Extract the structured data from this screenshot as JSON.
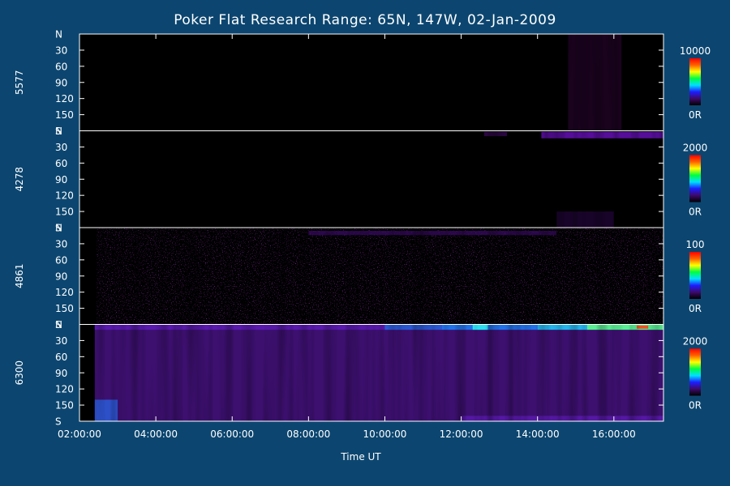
{
  "chart_data": {
    "type": "heatmap",
    "title": "Poker Flat Research Range: 65N, 147W, 02-Jan-2009",
    "xlabel": "Time UT",
    "x_ticks": [
      "02:00:00",
      "04:00:00",
      "06:00:00",
      "08:00:00",
      "10:00:00",
      "12:00:00",
      "14:00:00",
      "16:00:00"
    ],
    "x_tick_hours": [
      2,
      4,
      6,
      8,
      10,
      12,
      14,
      16
    ],
    "xlim_hours": [
      2.0,
      17.3
    ],
    "y_ticks": [
      "N",
      "30",
      "60",
      "90",
      "120",
      "150",
      "S"
    ],
    "y_tick_values": [
      0,
      30,
      60,
      90,
      120,
      150,
      180
    ],
    "ylim": [
      0,
      180
    ],
    "panels": [
      {
        "label": "5577",
        "colorbar_max": "10000",
        "colorbar_min": "0R",
        "features": [
          {
            "kind": "glow",
            "t0": 14.8,
            "t1": 16.2,
            "y0": 0,
            "y1": 180,
            "color": "#1c0320",
            "opacity": 0.9
          }
        ]
      },
      {
        "label": "4278",
        "colorbar_max": "2000",
        "colorbar_min": "0R",
        "features": [
          {
            "kind": "band",
            "t0": 12.6,
            "t1": 13.2,
            "y0": 2,
            "y1": 10,
            "color": "#3a0a5a",
            "opacity": 0.7
          },
          {
            "kind": "band",
            "t0": 14.1,
            "t1": 17.3,
            "y0": 2,
            "y1": 14,
            "color": "#5a0fa0",
            "opacity": 0.95
          },
          {
            "kind": "glow",
            "t0": 14.5,
            "t1": 16.0,
            "y0": 150,
            "y1": 180,
            "color": "#24063a",
            "opacity": 0.7
          }
        ]
      },
      {
        "label": "4861",
        "colorbar_max": "100",
        "colorbar_min": "0R",
        "features": [
          {
            "kind": "speckle",
            "t0": 2.45,
            "t1": 17.3,
            "y0": 0,
            "y1": 180,
            "color": "#4a0e78",
            "opacity": 0.75
          },
          {
            "kind": "band",
            "t0": 8.0,
            "t1": 14.5,
            "y0": 6,
            "y1": 14,
            "color": "#3a0a66",
            "opacity": 0.7
          }
        ]
      },
      {
        "label": "6300",
        "colorbar_max": "2000",
        "colorbar_min": "0R",
        "features": [
          {
            "kind": "fill",
            "t0": 2.4,
            "t1": 17.3,
            "y0": 0,
            "y1": 180,
            "color": "#3d1070",
            "opacity": 1.0
          },
          {
            "kind": "band",
            "t0": 2.4,
            "t1": 17.3,
            "y0": 0,
            "y1": 10,
            "color": "#5b1ab0",
            "opacity": 0.95
          },
          {
            "kind": "band",
            "t0": 10.0,
            "t1": 11.5,
            "y0": 0,
            "y1": 10,
            "color": "#2460d8",
            "opacity": 0.9
          },
          {
            "kind": "band",
            "t0": 11.5,
            "t1": 14.0,
            "y0": 0,
            "y1": 10,
            "color": "#1a7cf0",
            "opacity": 0.9
          },
          {
            "kind": "band",
            "t0": 12.3,
            "t1": 12.7,
            "y0": 0,
            "y1": 10,
            "color": "#29e0f0",
            "opacity": 1.0
          },
          {
            "kind": "band",
            "t0": 14.0,
            "t1": 15.3,
            "y0": 0,
            "y1": 10,
            "color": "#22b8f0",
            "opacity": 1.0
          },
          {
            "kind": "band",
            "t0": 15.3,
            "t1": 17.3,
            "y0": 0,
            "y1": 10,
            "color": "#55f090",
            "opacity": 1.0
          },
          {
            "kind": "band",
            "t0": 16.6,
            "t1": 16.9,
            "y0": 2,
            "y1": 8,
            "color": "#f05020",
            "opacity": 1.0
          },
          {
            "kind": "glow",
            "t0": 2.4,
            "t1": 3.0,
            "y0": 140,
            "y1": 180,
            "color": "#2a5cd8",
            "opacity": 0.85
          },
          {
            "kind": "band",
            "t0": 12.0,
            "t1": 17.3,
            "y0": 170,
            "y1": 180,
            "color": "#5b1ab0",
            "opacity": 0.8
          }
        ]
      }
    ],
    "colorbar_colors": [
      "#000000",
      "#3d0a6a",
      "#1d1dff",
      "#00e0ff",
      "#00ff40",
      "#ffff00",
      "#ff6000",
      "#ff0000"
    ]
  }
}
